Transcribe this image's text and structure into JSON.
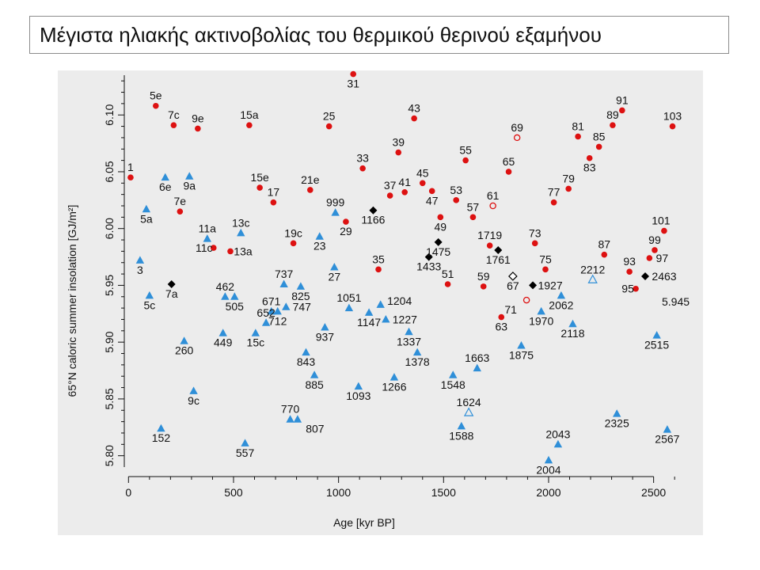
{
  "slide": {
    "title": "Μέγιστα ηλιακής ακτινοβολίας του θερμικού θερινού εξαμήνου"
  },
  "colors": {
    "red": "#dd1111",
    "blue": "#2f8fd8",
    "black": "#000000",
    "panel": "#ececec"
  },
  "chart_data": {
    "type": "scatter",
    "title": "",
    "xlabel": "Age [kyr BP]",
    "ylabel": "65°N caloric summer insolation [GJ/m²]",
    "xlim": [
      -20,
      2720
    ],
    "ylim": [
      5.79,
      6.135
    ],
    "xticks": [
      0,
      500,
      1000,
      1500,
      2000,
      2500
    ],
    "yticks": [
      5.8,
      5.85,
      5.9,
      5.95,
      6.0,
      6.05,
      6.1
    ],
    "ytick_labels": [
      "5.80",
      "5.85",
      "5.90",
      "5.95",
      "6.00",
      "6.05",
      "6.10"
    ],
    "grid": false,
    "annotations": [
      {
        "text": "5.945"
      }
    ],
    "series": [
      {
        "marker": "circle-filled",
        "color": "#dd1111",
        "points": [
          {
            "label": "1",
            "x": 10,
            "y": 6.045
          },
          {
            "label": "5e",
            "x": 130,
            "y": 6.108
          },
          {
            "label": "7c",
            "x": 215,
            "y": 6.091
          },
          {
            "label": "9e",
            "x": 330,
            "y": 6.088
          },
          {
            "label": "15a",
            "x": 575,
            "y": 6.091
          },
          {
            "label": "25",
            "x": 955,
            "y": 6.09
          },
          {
            "label": "31",
            "x": 1070,
            "y": 6.136
          },
          {
            "label": "43",
            "x": 1360,
            "y": 6.097
          },
          {
            "label": "39",
            "x": 1285,
            "y": 6.067
          },
          {
            "label": "33",
            "x": 1115,
            "y": 6.053
          },
          {
            "label": "7e",
            "x": 245,
            "y": 6.015
          },
          {
            "label": "15e",
            "x": 625,
            "y": 6.036
          },
          {
            "label": "17",
            "x": 690,
            "y": 6.023
          },
          {
            "label": "21e",
            "x": 865,
            "y": 6.034
          },
          {
            "label": "29",
            "x": 1035,
            "y": 6.006
          },
          {
            "label": "37",
            "x": 1245,
            "y": 6.029
          },
          {
            "label": "41",
            "x": 1315,
            "y": 6.032
          },
          {
            "label": "45",
            "x": 1400,
            "y": 6.04
          },
          {
            "label": "47",
            "x": 1445,
            "y": 6.033
          },
          {
            "label": "49",
            "x": 1485,
            "y": 6.01
          },
          {
            "label": "53",
            "x": 1560,
            "y": 6.025
          },
          {
            "label": "55",
            "x": 1605,
            "y": 6.06
          },
          {
            "label": "57",
            "x": 1640,
            "y": 6.01
          },
          {
            "label": "65",
            "x": 1810,
            "y": 6.05
          },
          {
            "label": "11c",
            "x": 405,
            "y": 5.983
          },
          {
            "label": "13a",
            "x": 485,
            "y": 5.98
          },
          {
            "label": "19c",
            "x": 785,
            "y": 5.987
          },
          {
            "label": "35",
            "x": 1190,
            "y": 5.964
          },
          {
            "label": "51",
            "x": 1520,
            "y": 5.951
          },
          {
            "label": "59",
            "x": 1690,
            "y": 5.949
          },
          {
            "label": "1719",
            "x": 1720,
            "y": 5.985
          },
          {
            "label": "73",
            "x": 1935,
            "y": 5.987
          },
          {
            "label": "75",
            "x": 1985,
            "y": 5.964
          },
          {
            "label": "63",
            "x": 1775,
            "y": 5.922
          },
          {
            "label": "77",
            "x": 2025,
            "y": 6.023
          },
          {
            "label": "79",
            "x": 2095,
            "y": 6.035
          },
          {
            "label": "81",
            "x": 2140,
            "y": 6.081
          },
          {
            "label": "83",
            "x": 2195,
            "y": 6.062
          },
          {
            "label": "85",
            "x": 2240,
            "y": 6.072
          },
          {
            "label": "89",
            "x": 2305,
            "y": 6.091
          },
          {
            "label": "91",
            "x": 2350,
            "y": 6.104
          },
          {
            "label": "103",
            "x": 2590,
            "y": 6.09
          },
          {
            "label": "87",
            "x": 2265,
            "y": 5.977
          },
          {
            "label": "93",
            "x": 2385,
            "y": 5.962
          },
          {
            "label": "95",
            "x": 2415,
            "y": 5.947
          },
          {
            "label": "97",
            "x": 2480,
            "y": 5.974
          },
          {
            "label": "99",
            "x": 2505,
            "y": 5.981
          },
          {
            "label": "101",
            "x": 2550,
            "y": 5.998
          }
        ]
      },
      {
        "marker": "circle-open",
        "color": "#dd1111",
        "points": [
          {
            "label": "61",
            "x": 1735,
            "y": 6.02
          },
          {
            "label": "69",
            "x": 1850,
            "y": 6.08
          },
          {
            "label": "71",
            "x": 1895,
            "y": 5.937
          }
        ]
      },
      {
        "marker": "triangle-filled",
        "color": "#2f8fd8",
        "points": [
          {
            "label": "6e",
            "x": 175,
            "y": 6.045
          },
          {
            "label": "9a",
            "x": 290,
            "y": 6.046
          },
          {
            "label": "5a",
            "x": 85,
            "y": 6.017
          },
          {
            "label": "3",
            "x": 55,
            "y": 5.972
          },
          {
            "label": "5c",
            "x": 100,
            "y": 5.941
          },
          {
            "label": "11a",
            "x": 375,
            "y": 5.991
          },
          {
            "label": "13c",
            "x": 535,
            "y": 5.996
          },
          {
            "label": "23",
            "x": 910,
            "y": 5.993
          },
          {
            "label": "999",
            "x": 985,
            "y": 6.014
          },
          {
            "label": "27",
            "x": 980,
            "y": 5.966
          },
          {
            "label": "737",
            "x": 740,
            "y": 5.951
          },
          {
            "label": "825",
            "x": 820,
            "y": 5.949
          },
          {
            "label": "462",
            "x": 460,
            "y": 5.94
          },
          {
            "label": "505",
            "x": 505,
            "y": 5.94
          },
          {
            "label": "671",
            "x": 680,
            "y": 5.927
          },
          {
            "label": "747",
            "x": 750,
            "y": 5.931
          },
          {
            "label": "712",
            "x": 710,
            "y": 5.927
          },
          {
            "label": "652",
            "x": 655,
            "y": 5.917
          },
          {
            "label": "15c",
            "x": 605,
            "y": 5.908
          },
          {
            "label": "449",
            "x": 450,
            "y": 5.908
          },
          {
            "label": "260",
            "x": 265,
            "y": 5.901
          },
          {
            "label": "937",
            "x": 935,
            "y": 5.913
          },
          {
            "label": "843",
            "x": 845,
            "y": 5.891
          },
          {
            "label": "1051",
            "x": 1050,
            "y": 5.93
          },
          {
            "label": "1147",
            "x": 1145,
            "y": 5.926
          },
          {
            "label": "1204",
            "x": 1200,
            "y": 5.933
          },
          {
            "label": "1227",
            "x": 1225,
            "y": 5.92
          },
          {
            "label": "1337",
            "x": 1335,
            "y": 5.909
          },
          {
            "label": "1378",
            "x": 1375,
            "y": 5.891
          },
          {
            "label": "885",
            "x": 885,
            "y": 5.871
          },
          {
            "label": "1093",
            "x": 1095,
            "y": 5.861
          },
          {
            "label": "1266",
            "x": 1265,
            "y": 5.869
          },
          {
            "label": "1548",
            "x": 1545,
            "y": 5.871
          },
          {
            "label": "1663",
            "x": 1660,
            "y": 5.877
          },
          {
            "label": "9c",
            "x": 310,
            "y": 5.857
          },
          {
            "label": "770",
            "x": 770,
            "y": 5.832
          },
          {
            "label": "807",
            "x": 805,
            "y": 5.832
          },
          {
            "label": "152",
            "x": 155,
            "y": 5.824
          },
          {
            "label": "557",
            "x": 555,
            "y": 5.811
          },
          {
            "label": "1588",
            "x": 1585,
            "y": 5.826
          },
          {
            "label": "1875",
            "x": 1870,
            "y": 5.897
          },
          {
            "label": "1970",
            "x": 1965,
            "y": 5.927
          },
          {
            "label": "2062",
            "x": 2060,
            "y": 5.941
          },
          {
            "label": "2118",
            "x": 2115,
            "y": 5.916
          },
          {
            "label": "2515",
            "x": 2515,
            "y": 5.906
          },
          {
            "label": "2325",
            "x": 2325,
            "y": 5.837
          },
          {
            "label": "2567",
            "x": 2565,
            "y": 5.823
          },
          {
            "label": "2043",
            "x": 2045,
            "y": 5.81
          },
          {
            "label": "2004",
            "x": 2000,
            "y": 5.796
          }
        ]
      },
      {
        "marker": "triangle-open",
        "color": "#2f8fd8",
        "points": [
          {
            "label": "1624",
            "x": 1620,
            "y": 5.838
          },
          {
            "label": "2212",
            "x": 2210,
            "y": 5.955
          }
        ]
      },
      {
        "marker": "diamond-filled",
        "color": "#000000",
        "points": [
          {
            "label": "7a",
            "x": 205,
            "y": 5.951
          },
          {
            "label": "1166",
            "x": 1165,
            "y": 6.016
          },
          {
            "label": "1475",
            "x": 1475,
            "y": 5.988
          },
          {
            "label": "1433",
            "x": 1430,
            "y": 5.975
          },
          {
            "label": "1761",
            "x": 1760,
            "y": 5.981
          },
          {
            "label": "1927",
            "x": 1925,
            "y": 5.95
          },
          {
            "label": "2463",
            "x": 2460,
            "y": 5.958
          }
        ]
      },
      {
        "marker": "diamond-open",
        "color": "#000000",
        "points": [
          {
            "label": "67",
            "x": 1830,
            "y": 5.958
          }
        ]
      }
    ]
  }
}
